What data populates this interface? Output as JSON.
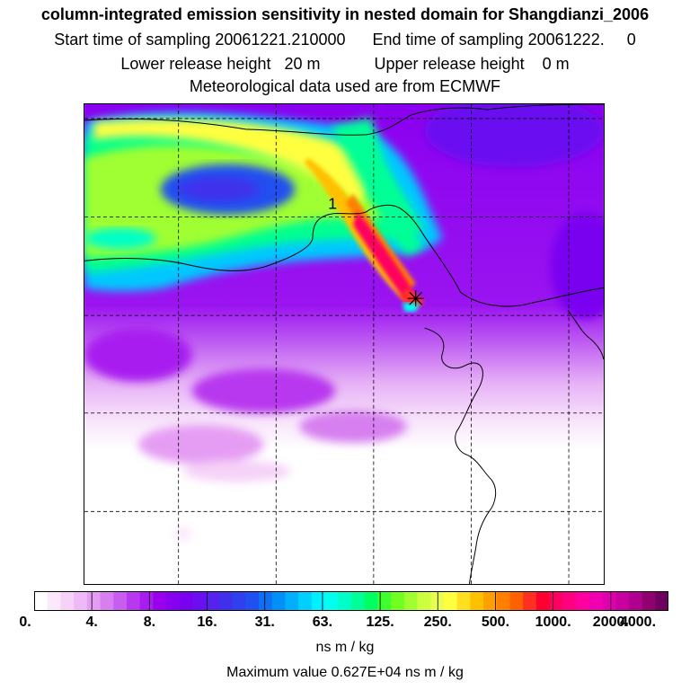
{
  "title": "column-integrated emission sensitivity in nested domain for Shangdianzi_2006",
  "start_label": "Start time of sampling 20061221.210000",
  "end_label": "End time of sampling 20061222.     0",
  "lower_label": "Lower release height   20 m",
  "upper_label": "Upper release height    0 m",
  "met_label": "Meteorological data used are from ECMWF",
  "release_marker": "1",
  "units": "ns m / kg",
  "max_label": "Maximum value  0.627E+04 ns m / kg",
  "colorbar": {
    "ticks": [
      "0.",
      "4.",
      "8.",
      "16.",
      "31.",
      "63.",
      "125.",
      "250.",
      "500.",
      "1000.",
      "2000.",
      "4000."
    ],
    "colors": [
      "#ffffff",
      "#fbe8fb",
      "#f6d2f8",
      "#efb8f6",
      "#e59df3",
      "#d77ff0",
      "#c85ef0",
      "#b838ef",
      "#a81cf0",
      "#9800ee",
      "#8800f0",
      "#7a00f0",
      "#6a10f0",
      "#5522ee",
      "#4030ec",
      "#3040ee",
      "#2050f0",
      "#1070f4",
      "#0090f8",
      "#00b0fc",
      "#00d0ff",
      "#00f0ff",
      "#00ffee",
      "#00ffc8",
      "#00ff96",
      "#00ff60",
      "#40ff30",
      "#70ff20",
      "#a0ff30",
      "#ccff40",
      "#e8ff50",
      "#ffff40",
      "#ffe020",
      "#ffc000",
      "#ffa000",
      "#ff8000",
      "#ff6000",
      "#ff3020",
      "#ff0030",
      "#ff0060",
      "#ff0080",
      "#ff00a0",
      "#f000b0",
      "#e000b0",
      "#c800a0",
      "#b00090",
      "#900070",
      "#700060"
    ]
  }
}
